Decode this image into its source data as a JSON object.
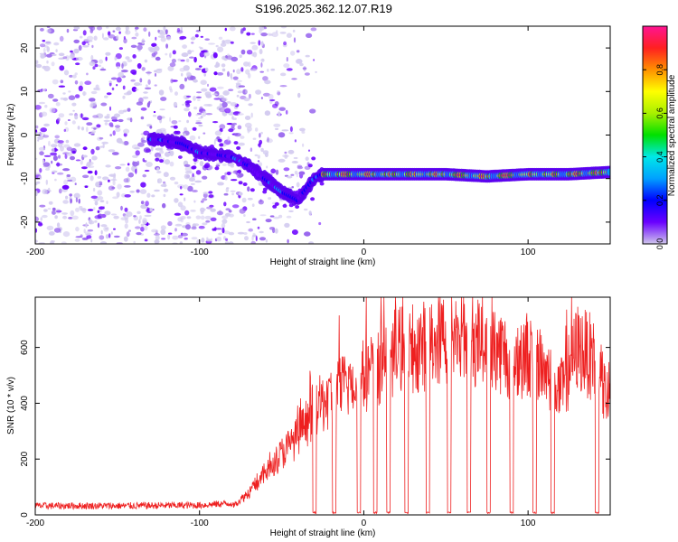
{
  "title": "S196.2025.362.12.07.R19",
  "chart_data": [
    {
      "type": "heatmap",
      "title": "S196.2025.362.12.07.R19",
      "xlabel": "Height of straight line (km)",
      "ylabel": "Frequency (Hz)",
      "xlim": [
        -200,
        150
      ],
      "ylim": [
        -25,
        25
      ],
      "xticks": [
        "-200",
        "-100",
        "0",
        "100"
      ],
      "yticks": [
        "20",
        "10",
        "0",
        "-10",
        "-20"
      ],
      "colorbar": {
        "label": "Normalized spectral amplitude",
        "range": [
          0,
          1
        ],
        "ticks": [
          "0.0",
          "0.2",
          "0.4",
          "0.6",
          "0.8"
        ],
        "colors": [
          "#cfc6ec",
          "#6a00ff",
          "#0000ff",
          "#00a0ff",
          "#00e8e8",
          "#00e000",
          "#a8f000",
          "#ffff00",
          "#ff9000",
          "#ff2020",
          "#ff1493"
        ]
      },
      "ridge": {
        "x": [
          -125,
          -110,
          -100,
          -90,
          -80,
          -70,
          -60,
          -50,
          -40,
          -30,
          -25,
          -15,
          0,
          25,
          50,
          75,
          100,
          125,
          150
        ],
        "freq": [
          -1,
          -2,
          -4,
          -4.5,
          -5,
          -7,
          -10,
          -13,
          -15,
          -10,
          -9,
          -9,
          -9,
          -9,
          -9,
          -9.5,
          -9,
          -9,
          -8.5
        ]
      }
    },
    {
      "type": "line",
      "xlabel": "Height of straight line (km)",
      "ylabel": "SNR (10 * v/v)",
      "xlim": [
        -200,
        150
      ],
      "ylim": [
        0,
        780
      ],
      "xticks": [
        "-200",
        "-100",
        "0",
        "100"
      ],
      "yticks": [
        "0",
        "200",
        "400",
        "600"
      ],
      "series": [
        {
          "name": "SNR",
          "color": "#ee2020",
          "x": [
            -200,
            -150,
            -100,
            -80,
            -70,
            -60,
            -50,
            -40,
            -30,
            -20,
            -10,
            0,
            10,
            20,
            30,
            40,
            50,
            60,
            70,
            80,
            90,
            100,
            110,
            120,
            130,
            140,
            150
          ],
          "values": [
            20,
            20,
            22,
            30,
            80,
            150,
            220,
            280,
            380,
            420,
            470,
            500,
            540,
            590,
            600,
            610,
            640,
            650,
            620,
            600,
            560,
            580,
            520,
            440,
            600,
            560,
            380
          ],
          "dropouts": [
            -30,
            -18,
            -3,
            7,
            15,
            26,
            39,
            52,
            64,
            76,
            90,
            104,
            115,
            142
          ]
        }
      ]
    }
  ]
}
